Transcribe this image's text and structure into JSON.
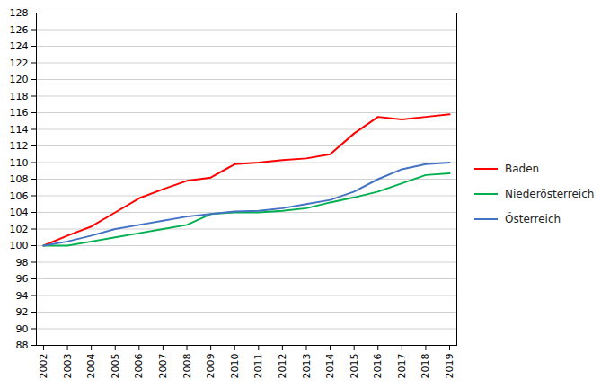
{
  "chart_data": {
    "type": "line",
    "x": [
      2002,
      2003,
      2004,
      2005,
      2006,
      2007,
      2008,
      2009,
      2010,
      2011,
      2012,
      2013,
      2014,
      2015,
      2016,
      2017,
      2018,
      2019
    ],
    "series": [
      {
        "name": "Baden",
        "color": "#ff0000",
        "values": [
          100.0,
          101.2,
          102.3,
          104.0,
          105.7,
          106.8,
          107.8,
          108.2,
          109.8,
          110.0,
          110.3,
          110.5,
          111.0,
          113.5,
          115.5,
          115.2,
          115.5,
          115.8
        ]
      },
      {
        "name": "Niederösterreich",
        "color": "#00b050",
        "values": [
          100.0,
          100.0,
          100.5,
          101.0,
          101.5,
          102.0,
          102.5,
          103.8,
          104.0,
          104.0,
          104.2,
          104.5,
          105.2,
          105.8,
          106.5,
          107.5,
          108.5,
          108.7
        ]
      },
      {
        "name": "Österreich",
        "color": "#4472c4",
        "values": [
          100.0,
          100.5,
          101.2,
          102.0,
          102.5,
          103.0,
          103.5,
          103.8,
          104.1,
          104.2,
          104.5,
          105.0,
          105.5,
          106.5,
          108.0,
          109.2,
          109.8,
          110.0
        ]
      }
    ],
    "xlim": [
      2001.7,
      2019.3
    ],
    "xticks": [
      2002,
      2003,
      2004,
      2005,
      2006,
      2007,
      2008,
      2009,
      2010,
      2011,
      2012,
      2013,
      2014,
      2015,
      2016,
      2017,
      2018,
      2019
    ],
    "ylim": [
      88,
      128
    ],
    "yticks": [
      88,
      90,
      92,
      94,
      96,
      98,
      100,
      102,
      104,
      106,
      108,
      110,
      112,
      114,
      116,
      118,
      120,
      122,
      124,
      126,
      128
    ],
    "grid": true,
    "legend": "right"
  }
}
